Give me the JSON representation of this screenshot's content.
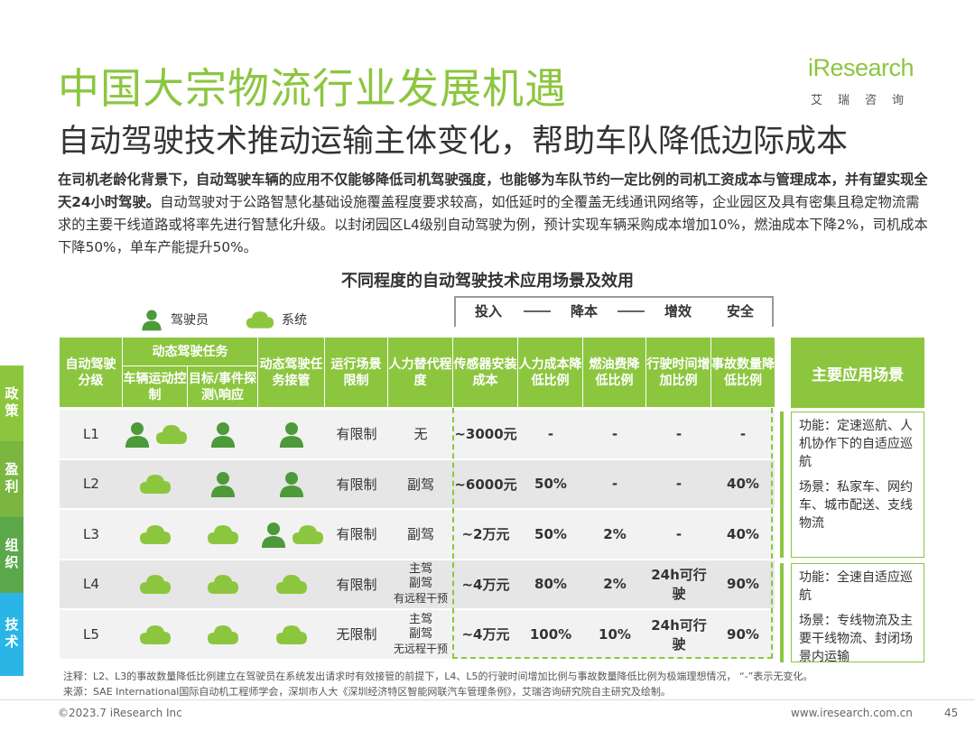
{
  "title": "中国大宗物流行业发展机遇",
  "subtitle": "自动驾驶技术推动运输主体变化，帮助车队降低边际成本",
  "logo": {
    "brand": "iResearch",
    "sub": "艾瑞咨询"
  },
  "intro_bold": "在司机老龄化背景下，自动驾驶车辆的应用不仅能够降低司机驾驶强度，也能够为车队节约一定比例的司机工资成本与管理成本，并有望实现全天24小时驾驶。",
  "intro_normal": "自动驾驶对于公路智慧化基础设施覆盖程度要求较高，如低延时的全覆盖无线通讯网络等，企业园区及具有密集且稳定物流需求的主要干线道路或将率先进行智慧化升级。以封闭园区L4级别自动驾驶为例，预计实现车辆采购成本增加10%，燃油成本下降2%，司机成本下降50%，单车产能提升50%。",
  "table_title": "不同程度的自动驾驶技术应用场景及效用",
  "legend": {
    "driver": "驾驶员",
    "system": "系统"
  },
  "side_tabs": [
    {
      "label": "政策",
      "color": "#8cc63f"
    },
    {
      "label": "盈利",
      "color": "#7ab640"
    },
    {
      "label": "组织",
      "color": "#5aa84a"
    },
    {
      "label": "技术",
      "color": "#2ab5e6"
    }
  ],
  "groups": {
    "invest": "投入",
    "reduce": "降本",
    "efficiency": "增效",
    "safety": "安全"
  },
  "headers": {
    "level": "自动驾驶分级",
    "dynamic_task": "动态驾驶任务",
    "vehicle_control": "车辆运动控制",
    "detection": "目标/事件探测\\响应",
    "takeover": "动态驾驶任务接管",
    "scenario_limit": "运行场景限制",
    "replacement": "人力替代程度",
    "sensor_cost": "传感器安装成本",
    "labor_cost": "人力成本降低比例",
    "fuel_cost": "燃油费降低比例",
    "driving_time": "行驶时间增加比例",
    "accident": "事故数量降低比例",
    "main_scene": "主要应用场景"
  },
  "rows": [
    {
      "level": "L1",
      "control": "both",
      "detect": "driver",
      "takeover": "driver",
      "limit": "有限制",
      "replace": "无",
      "sensor": "~3000元",
      "labor": "-",
      "fuel": "-",
      "time": "-",
      "accident": "-"
    },
    {
      "level": "L2",
      "control": "system",
      "detect": "driver",
      "takeover": "driver",
      "limit": "有限制",
      "replace": "副驾",
      "sensor": "~6000元",
      "labor": "50%",
      "fuel": "-",
      "time": "-",
      "accident": "40%"
    },
    {
      "level": "L3",
      "control": "system",
      "detect": "system",
      "takeover": "both",
      "limit": "有限制",
      "replace": "副驾",
      "sensor": "~2万元",
      "labor": "50%",
      "fuel": "2%",
      "time": "-",
      "accident": "40%"
    },
    {
      "level": "L4",
      "control": "system",
      "detect": "system",
      "takeover": "system",
      "limit": "有限制",
      "replace_lines": [
        "主驾",
        "副驾",
        "有远程干预"
      ],
      "sensor": "~4万元",
      "labor": "80%",
      "fuel": "2%",
      "time_lines": [
        "24h可行",
        "驶"
      ],
      "accident": "90%"
    },
    {
      "level": "L5",
      "control": "system",
      "detect": "system",
      "takeover": "system",
      "limit": "无限制",
      "replace_lines": [
        "主驾",
        "副驾",
        "无远程干预"
      ],
      "sensor": "~4万元",
      "labor": "100%",
      "fuel": "10%",
      "time_lines": [
        "24h可行",
        "驶"
      ],
      "accident": "90%"
    }
  ],
  "scenes": [
    {
      "func": "功能：定速巡航、人机协作下的自适应巡航",
      "scene": "场景：私家车、网约车、城市配送、支线物流"
    },
    {
      "func": "功能：全速自适应巡航",
      "scene": "场景：专线物流及主要干线物流、封闭场景内运输"
    }
  ],
  "note1": "注释：L2、L3的事故数量降低比例建立在驾驶员在系统发出请求时有效接管的前提下，L4、L5的行驶时间增加比例与事故数量降低比例为极端理想情况，  “-”表示无变化。",
  "note2": "来源：SAE International国际自动机工程师学会，深圳市人大《深圳经济特区智能网联汽车管理条例》，艾瑞咨询研究院自主研究及绘制。",
  "footer_left": "©2023.7 iResearch Inc",
  "footer_right": "www.iresearch.com.cn",
  "page": "45",
  "colors": {
    "accent": "#8cc63f",
    "driver_icon": "#4c9a3a",
    "system_icon": "#8cc63f",
    "tech_tab": "#2ab5e6"
  }
}
